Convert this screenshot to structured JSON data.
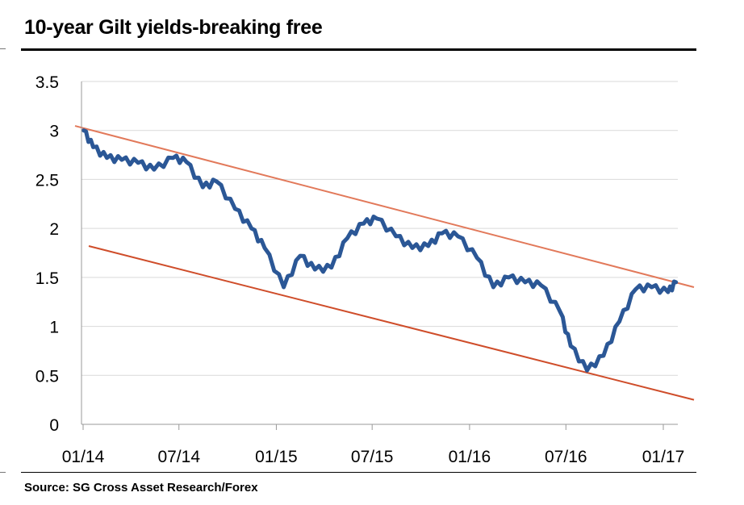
{
  "header": {
    "title": "10-year Gilt yields-breaking free"
  },
  "footer": {
    "source": "Source: SG Cross Asset Research/Forex"
  },
  "colors": {
    "series": "#2b5796",
    "upper_trendline": "#e2795a",
    "lower_trendline": "#cf4d2a",
    "grid": "#d9d9d9",
    "axis": "#999999"
  },
  "chart_data": {
    "type": "line",
    "title": "10-year Gilt yields-breaking free",
    "xlabel": "",
    "ylabel": "",
    "ylim": [
      0,
      3.5
    ],
    "yticks": [
      "0",
      "0.5",
      "1",
      "1.5",
      "2",
      "2.5",
      "3",
      "3.5"
    ],
    "xticks": [
      "01/14",
      "07/14",
      "01/15",
      "07/15",
      "01/16",
      "07/16",
      "01/17"
    ],
    "grid": true,
    "legend": "none",
    "series": [
      {
        "values_by_month": [
          [
            "2014-01",
            3.0
          ],
          [
            "2014-01",
            2.83
          ],
          [
            "2014-02",
            2.72
          ],
          [
            "2014-03",
            2.7
          ],
          [
            "2014-04",
            2.67
          ],
          [
            "2014-05",
            2.6
          ],
          [
            "2014-06",
            2.72
          ],
          [
            "2014-07",
            2.68
          ],
          [
            "2014-08",
            2.42
          ],
          [
            "2014-09",
            2.48
          ],
          [
            "2014-10",
            2.2
          ],
          [
            "2014-11",
            2.0
          ],
          [
            "2014-12",
            1.8
          ],
          [
            "2015-01",
            1.4
          ],
          [
            "2015-02",
            1.72
          ],
          [
            "2015-03",
            1.58
          ],
          [
            "2015-04",
            1.6
          ],
          [
            "2015-05",
            1.9
          ],
          [
            "2015-06",
            2.05
          ],
          [
            "2015-07",
            2.1
          ],
          [
            "2015-08",
            1.92
          ],
          [
            "2015-09",
            1.8
          ],
          [
            "2015-10",
            1.82
          ],
          [
            "2015-11",
            1.95
          ],
          [
            "2015-12",
            1.92
          ],
          [
            "2016-01",
            1.7
          ],
          [
            "2016-02",
            1.4
          ],
          [
            "2016-03",
            1.5
          ],
          [
            "2016-04",
            1.45
          ],
          [
            "2016-05",
            1.42
          ],
          [
            "2016-06",
            1.15
          ],
          [
            "2016-07",
            0.8
          ],
          [
            "2016-08",
            0.55
          ],
          [
            "2016-09",
            0.7
          ],
          [
            "2016-10",
            1.05
          ],
          [
            "2016-11",
            1.38
          ],
          [
            "2016-12",
            1.4
          ],
          [
            "2017-01",
            1.35
          ],
          [
            "2017-01",
            1.45
          ]
        ],
        "x": [
          "2014-01-02",
          "2014-01-20",
          "2014-02-15",
          "2014-03-15",
          "2014-04-15",
          "2014-05-15",
          "2014-06-20",
          "2014-07-15",
          "2014-08-15",
          "2014-09-10",
          "2014-10-15",
          "2014-11-15",
          "2014-12-10",
          "2015-01-15",
          "2015-02-15",
          "2015-03-15",
          "2015-04-15",
          "2015-05-15",
          "2015-06-15",
          "2015-07-10",
          "2015-08-15",
          "2015-09-15",
          "2015-10-15",
          "2015-11-10",
          "2015-12-10",
          "2016-01-15",
          "2016-02-15",
          "2016-03-15",
          "2016-04-15",
          "2016-05-15",
          "2016-06-20",
          "2016-07-10",
          "2016-08-10",
          "2016-09-10",
          "2016-10-10",
          "2016-11-10",
          "2016-12-10",
          "2017-01-10",
          "2017-01-25"
        ],
        "values": [
          3.0,
          2.83,
          2.72,
          2.7,
          2.67,
          2.6,
          2.72,
          2.68,
          2.42,
          2.48,
          2.2,
          2.0,
          1.8,
          1.4,
          1.72,
          1.58,
          1.6,
          1.9,
          2.05,
          2.1,
          1.92,
          1.8,
          1.82,
          1.95,
          1.92,
          1.7,
          1.4,
          1.5,
          1.45,
          1.42,
          1.15,
          0.8,
          0.55,
          0.7,
          1.05,
          1.38,
          1.4,
          1.35,
          1.45
        ]
      }
    ],
    "trendlines": [
      {
        "role": "upper",
        "x": [
          "2014-01-01",
          "2017-02-01"
        ],
        "y": [
          3.03,
          1.4
        ]
      },
      {
        "role": "lower",
        "x": [
          "2014-01-01",
          "2017-02-01"
        ],
        "y": [
          1.82,
          0.25
        ]
      }
    ]
  }
}
